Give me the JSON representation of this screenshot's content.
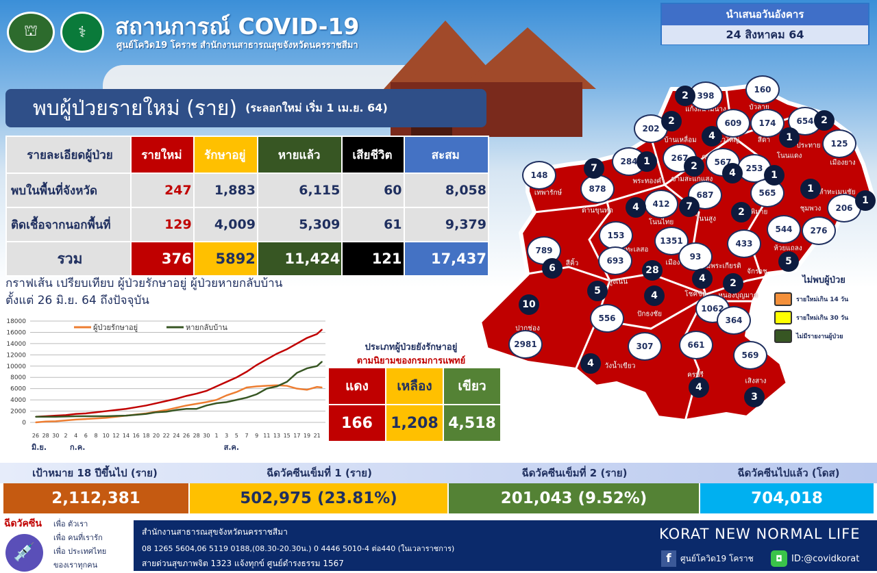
{
  "header": {
    "title": "สถานการณ์ COVID-19",
    "subtitle": "ศูนย์โควิด19 โคราช สำนักงานสาธารณสุขจังหวัดนครราชสีมา",
    "date_label": "นำเสนอวันอังคาร",
    "date": "24 สิงหาคม 64"
  },
  "banner": {
    "title": "พบผู้ป่วยรายใหม่ (ราย)",
    "note": "(ระลอกใหม่ เริ่ม 1 เม.ย. 64)"
  },
  "summary_table": {
    "headers": [
      "รายละเอียดผู้ป่วย",
      "รายใหม่",
      "รักษาอยู่",
      "หายแล้ว",
      "เสียชีวิต",
      "สะสม"
    ],
    "rows": [
      {
        "label": "พบในพื้นที่จังหวัด",
        "values": [
          "247",
          "1,883",
          "6,115",
          "60",
          "8,058"
        ]
      },
      {
        "label": "ติดเชื้อจากนอกพื้นที่",
        "values": [
          "129",
          "4,009",
          "5,309",
          "61",
          "9,379"
        ]
      },
      {
        "label": "รวม",
        "values": [
          "376",
          "5892",
          "11,424",
          "121",
          "17,437"
        ]
      }
    ],
    "colors": {
      "new": "#c00000",
      "treating": "#ffc000",
      "recovered": "#375623",
      "deaths": "#000000",
      "cumulative": "#4472c4"
    }
  },
  "chart_title": {
    "line1": "กราฟเส้น เปรียบเทียบ ผู้ป่วยรักษาอยู่ ผู้ป่วยหายกลับบ้าน",
    "line2": "ตั้งแต่ 26 มิ.ย. 64 ถึงปัจจุบัน"
  },
  "chart_data": {
    "type": "line",
    "ylim": [
      0,
      18000
    ],
    "yticks": [
      0,
      2000,
      4000,
      6000,
      8000,
      10000,
      12000,
      14000,
      16000,
      18000
    ],
    "xtick_labels": [
      "26",
      "28",
      "30",
      "2",
      "4",
      "6",
      "8",
      "10",
      "12",
      "14",
      "16",
      "18",
      "20",
      "22",
      "24",
      "26",
      "28",
      "30",
      "1",
      "3",
      "5",
      "7",
      "9",
      "11",
      "13",
      "15",
      "17",
      "19",
      "21"
    ],
    "month_labels": [
      "มิ.ย.",
      "ก.ค.",
      "ส.ค."
    ],
    "x": [
      "2021-06-26",
      "2021-06-28",
      "2021-06-30",
      "2021-07-02",
      "2021-07-04",
      "2021-07-06",
      "2021-07-08",
      "2021-07-10",
      "2021-07-12",
      "2021-07-14",
      "2021-07-16",
      "2021-07-18",
      "2021-07-20",
      "2021-07-22",
      "2021-07-24",
      "2021-07-26",
      "2021-07-28",
      "2021-07-30",
      "2021-08-01",
      "2021-08-03",
      "2021-08-05",
      "2021-08-07",
      "2021-08-09",
      "2021-08-11",
      "2021-08-13",
      "2021-08-15",
      "2021-08-17",
      "2021-08-19",
      "2021-08-21",
      "2021-08-22"
    ],
    "grid": true,
    "legend_placement": "top",
    "series": [
      {
        "color": "#c00000",
        "values": [
          1000,
          1100,
          1200,
          1300,
          1500,
          1600,
          1800,
          2000,
          2200,
          2400,
          2700,
          3000,
          3400,
          3800,
          4200,
          4700,
          5100,
          5600,
          6400,
          7200,
          8000,
          9000,
          10200,
          11200,
          12200,
          13000,
          14000,
          15000,
          15700,
          16500
        ]
      },
      {
        "name": "ผู้ป่วยรักษาอยู่",
        "color": "#ed7d31",
        "values": [
          0,
          150,
          200,
          350,
          500,
          600,
          700,
          800,
          1000,
          1200,
          1400,
          1600,
          1900,
          2200,
          2600,
          3000,
          3300,
          3600,
          4000,
          4800,
          5400,
          6200,
          6400,
          6500,
          6600,
          6500,
          6000,
          5800,
          6300,
          6200
        ]
      },
      {
        "name": "หายกลับบ้าน",
        "color": "#375623",
        "values": [
          1000,
          1000,
          1000,
          1050,
          1100,
          1100,
          1100,
          1100,
          1150,
          1200,
          1350,
          1500,
          1800,
          1900,
          2200,
          2400,
          2400,
          3000,
          3400,
          3600,
          4000,
          4400,
          5000,
          6000,
          6400,
          7200,
          8800,
          9600,
          10000,
          10800
        ]
      }
    ]
  },
  "severity": {
    "title": "ประเภทผู้ป่วยยังรักษาอยู่",
    "subtitle": "ตามนิยามของกรมการแพทย์",
    "items": [
      {
        "label": "แดง",
        "value": "166",
        "color": "#c00000"
      },
      {
        "label": "เหลือง",
        "value": "1,208",
        "color": "#ffc000"
      },
      {
        "label": "เขียว",
        "value": "4,518",
        "color": "#548235"
      }
    ]
  },
  "map": {
    "fill_color": "#c00000",
    "totals": [
      "398",
      "160",
      "202",
      "609",
      "174",
      "654",
      "125",
      "284",
      "267",
      "567",
      "253",
      "148",
      "878",
      "687",
      "565",
      "412",
      "544",
      "276",
      "206",
      "153",
      "1351",
      "433",
      "789",
      "693",
      "93",
      "556",
      "1062",
      "364",
      "2981",
      "307",
      "661",
      "569"
    ],
    "new_cases": [
      "2",
      "2",
      "2",
      "1",
      "4",
      "1",
      "2",
      "4",
      "1",
      "7",
      "4",
      "7",
      "2",
      "1",
      "1",
      "5",
      "6",
      "28",
      "4",
      "2",
      "5",
      "4",
      "10",
      "4",
      "4",
      "3"
    ],
    "district_names": [
      "แก้งสนามนาง",
      "บัวลาย",
      "บ้านเหลื่อม",
      "บัวใหญ่",
      "สีดา",
      "ประทาย",
      "เมืองยาง",
      "คง",
      "โนนแดง",
      "พระทองคำ",
      "ขามสะแกแสง",
      "เทพารักษ์",
      "ด่านขุนทด",
      "โนนไทย",
      "โนนสูง",
      "พิมาย",
      "ชุมพวง",
      "ลำทะเมนชัย",
      "ห้วยแถลง",
      "ขามทะเลสอ",
      "เมือง",
      "เฉลิมพระเกียรติ",
      "จักราช",
      "สีคิ้ว",
      "สูงเนิน",
      "ปักธงชัย",
      "โชคชัย",
      "หนองบุญมาก",
      "ปากช่อง",
      "วังน้ำเขียว",
      "ครบุรี",
      "เสิงสาง"
    ],
    "legend": {
      "title": "ไม่พบผู้ป่วย",
      "items": [
        {
          "label": "รายใหม่เกิน 14 วัน",
          "color": "#f4903a"
        },
        {
          "label": "รายใหม่เกิน 30 วัน",
          "color": "#ffff00"
        },
        {
          "label": "ไม่มีรายงานผู้ป่วย",
          "color": "#375623"
        }
      ]
    }
  },
  "vaccine": {
    "items": [
      {
        "label": "เป้าหมาย 18 ปีขึ้นไป (ราย)",
        "value": "2,112,381",
        "color": "#c55a11"
      },
      {
        "label": "ฉีดวัคซีนเข็มที่ 1 (ราย)",
        "value": "502,975 (23.81%)",
        "color": "#ffc000"
      },
      {
        "label": "ฉีดวัคซีนเข็มที่ 2 (ราย)",
        "value": "201,043 (9.52%)",
        "color": "#548235"
      },
      {
        "label": "ฉีดวัคซีนไปแล้ว (โดส)",
        "value": "704,018",
        "color": "#00b0f0"
      }
    ]
  },
  "footer": {
    "campaign_title": "ฉีดวัคซีน",
    "campaign_lines": [
      "เพื่อ ตัวเรา",
      "เพื่อ คนที่เรารัก",
      "เพื่อ ประเทศไทย",
      "ของเราทุกคน"
    ],
    "org": "สำนักงานสาธารณสุขจังหวัดนครราชสีมา",
    "phones": "08 1265 5604,06 5119 0188,(08.30-20.30น.) 0 4446 5010-4 ต่อ440 (ในเวลาราชการ)",
    "hotline": "สายด่วนสุขภาพจิต 1323 แจ้งทุกข์ ศูนย์ดำรงธรรม 1567",
    "slogan": "KORAT NEW NORMAL LIFE",
    "facebook": "ศูนย์โควิด19 โคราช",
    "line": "ID:@covidkorat"
  }
}
